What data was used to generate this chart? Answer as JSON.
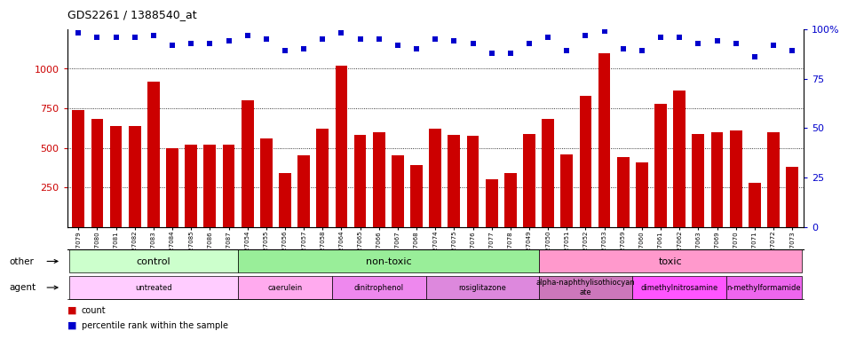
{
  "title": "GDS2261 / 1388540_at",
  "samples": [
    "GSM127079",
    "GSM127080",
    "GSM127081",
    "GSM127082",
    "GSM127083",
    "GSM127084",
    "GSM127085",
    "GSM127086",
    "GSM127087",
    "GSM127054",
    "GSM127055",
    "GSM127056",
    "GSM127057",
    "GSM127058",
    "GSM127064",
    "GSM127065",
    "GSM127066",
    "GSM127067",
    "GSM127068",
    "GSM127074",
    "GSM127075",
    "GSM127076",
    "GSM127077",
    "GSM127078",
    "GSM127049",
    "GSM127050",
    "GSM127051",
    "GSM127052",
    "GSM127053",
    "GSM127059",
    "GSM127060",
    "GSM127061",
    "GSM127062",
    "GSM127063",
    "GSM127069",
    "GSM127070",
    "GSM127071",
    "GSM127072",
    "GSM127073"
  ],
  "counts": [
    740,
    680,
    640,
    640,
    920,
    500,
    520,
    520,
    520,
    800,
    560,
    340,
    450,
    620,
    1020,
    580,
    600,
    450,
    390,
    620,
    580,
    575,
    300,
    340,
    590,
    680,
    460,
    830,
    1100,
    440,
    410,
    780,
    860,
    590,
    600,
    610,
    280,
    600,
    380
  ],
  "percentile_ranks": [
    98,
    96,
    96,
    96,
    97,
    92,
    93,
    93,
    94,
    97,
    95,
    89,
    90,
    95,
    98,
    95,
    95,
    92,
    90,
    95,
    94,
    93,
    88,
    88,
    93,
    96,
    89,
    97,
    99,
    90,
    89,
    96,
    96,
    93,
    94,
    93,
    86,
    92,
    89
  ],
  "ylim_left": [
    0,
    1250
  ],
  "ylim_right": [
    0,
    100
  ],
  "yticks_left": [
    250,
    500,
    750,
    1000
  ],
  "yticks_right": [
    0,
    25,
    50,
    75,
    100
  ],
  "bar_color": "#cc0000",
  "dot_color": "#0000cc",
  "groups_other": [
    {
      "label": "control",
      "start": 0,
      "end": 9,
      "color": "#c8f5c8"
    },
    {
      "label": "non-toxic",
      "start": 9,
      "end": 25,
      "color": "#88ee88"
    },
    {
      "label": "toxic",
      "start": 25,
      "end": 39,
      "color": "#ff99cc"
    }
  ],
  "groups_agent": [
    {
      "label": "untreated",
      "start": 0,
      "end": 9,
      "color": "#ffccff"
    },
    {
      "label": "caerulein",
      "start": 9,
      "end": 14,
      "color": "#ffaaee"
    },
    {
      "label": "dinitrophenol",
      "start": 14,
      "end": 19,
      "color": "#ee88ee"
    },
    {
      "label": "rosiglitazone",
      "start": 19,
      "end": 25,
      "color": "#dd88dd"
    },
    {
      "label": "alpha-naphthylisothiocyan\nate",
      "start": 25,
      "end": 30,
      "color": "#cc77cc"
    },
    {
      "label": "dimethylnitrosamine",
      "start": 30,
      "end": 35,
      "color": "#ff55ff"
    },
    {
      "label": "n-methylformamide",
      "start": 35,
      "end": 39,
      "color": "#ee66ee"
    }
  ]
}
